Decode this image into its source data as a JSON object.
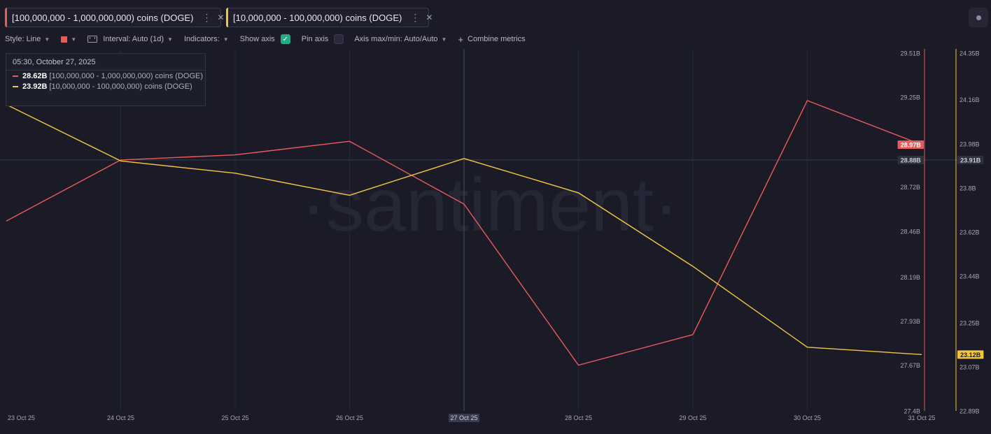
{
  "tabs": [
    {
      "label": "[100,000,000 - 1,000,000,000) coins (DOGE)",
      "color": "#ea5a5a",
      "menu_icon": "kebab-icon",
      "close_icon": "close-icon"
    },
    {
      "label": "[10,000,000 - 100,000,000) coins (DOGE)",
      "color": "#f3c641",
      "menu_icon": "kebab-icon",
      "close_icon": "close-icon"
    }
  ],
  "toolbar": {
    "style_label": "Style: Line",
    "interval_label": "Interval: Auto (1d)",
    "indicators_label": "Indicators:",
    "show_axis_label": "Show axis",
    "show_axis_checked": true,
    "pin_axis_label": "Pin axis",
    "pin_axis_checked": false,
    "axis_minmax_label": "Axis max/min: Auto/Auto",
    "combine_label": "Combine metrics"
  },
  "tooltip": {
    "date": "05:30, October 27, 2025",
    "rows": [
      {
        "value": "28.62B",
        "name": "[100,000,000 - 1,000,000,000) coins (DOGE)",
        "color": "#ea5a5a"
      },
      {
        "value": "23.92B",
        "name": "[10,000,000 - 100,000,000) coins (DOGE)",
        "color": "#f3c641"
      }
    ]
  },
  "chart_data": {
    "type": "line",
    "watermark": "·santiment·",
    "x": [
      "23 Oct 25",
      "24 Oct 25",
      "25 Oct 25",
      "26 Oct 25",
      "27 Oct 25",
      "28 Oct 25",
      "29 Oct 25",
      "30 Oct 25",
      "31 Oct 25"
    ],
    "highlighted_x": "27 Oct 25",
    "series": [
      {
        "name": "[100,000,000 - 1,000,000,000) coins (DOGE)",
        "color": "#ea5a5a",
        "axis": "left",
        "values": [
          28.52,
          28.88,
          28.91,
          28.99,
          28.62,
          27.67,
          27.85,
          29.23,
          28.97
        ],
        "last_label": "28.97B"
      },
      {
        "name": "[10,000,000 - 100,000,000) coins (DOGE)",
        "color": "#f3c641",
        "axis": "right",
        "values": [
          24.14,
          23.91,
          23.86,
          23.77,
          23.92,
          23.78,
          23.48,
          23.15,
          23.12
        ],
        "last_label": "23.12B"
      }
    ],
    "axes": [
      {
        "id": "left",
        "min": 27.4,
        "max": 29.51,
        "ticks": [
          "29.51B",
          "29.25B",
          "28.72B",
          "28.46B",
          "28.19B",
          "27.93B",
          "27.67B",
          "27.4B"
        ],
        "tick_values": [
          29.51,
          29.25,
          28.72,
          28.46,
          28.19,
          27.93,
          27.67,
          27.4
        ]
      },
      {
        "id": "right",
        "min": 22.89,
        "max": 24.35,
        "ticks": [
          "24.35B",
          "24.16B",
          "23.98B",
          "23.8B",
          "23.62B",
          "23.44B",
          "23.25B",
          "23.07B",
          "22.89B"
        ],
        "tick_values": [
          24.35,
          24.16,
          23.98,
          23.8,
          23.62,
          23.44,
          23.25,
          23.07,
          22.89
        ]
      }
    ],
    "crosshair": {
      "left_label": "28.88B",
      "right_label": "23.91B",
      "value_left": 28.88
    },
    "grid": true
  }
}
